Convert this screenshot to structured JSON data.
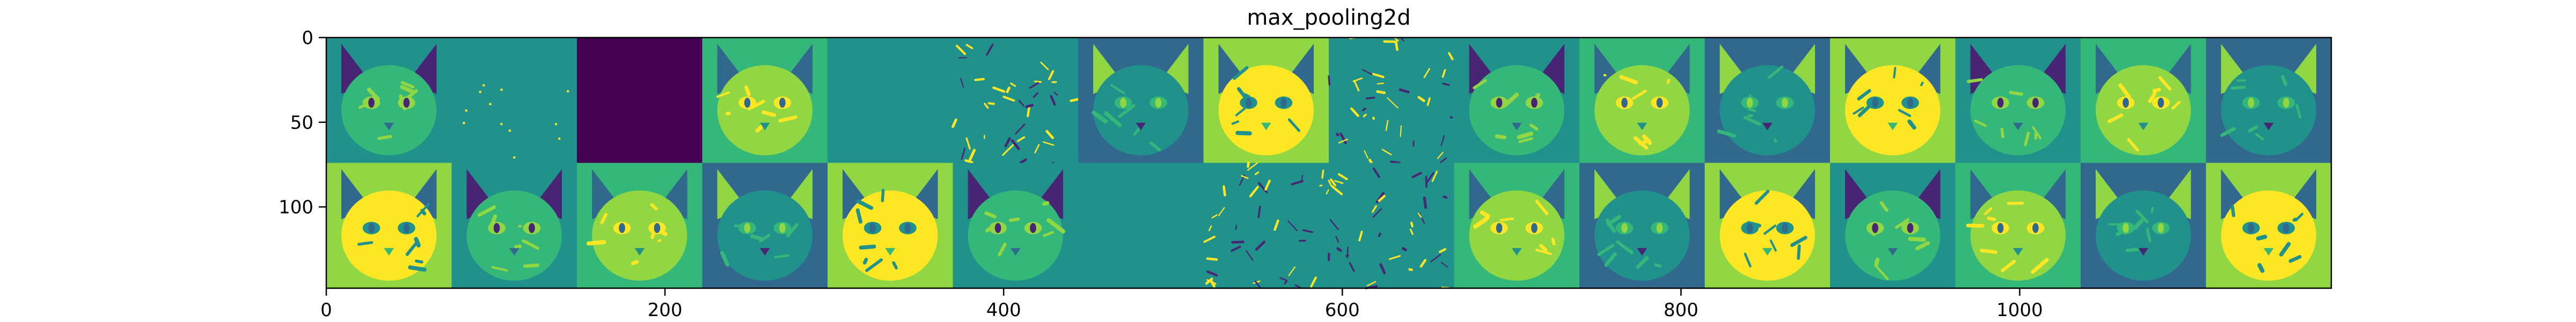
{
  "figure": {
    "title": "max_pooling2d"
  },
  "chart_data": {
    "type": "heatmap",
    "title": "max_pooling2d",
    "xlabel": "",
    "ylabel": "",
    "xlim": [
      0,
      1184
    ],
    "ylim": [
      148,
      0
    ],
    "x_ticks": [
      0,
      200,
      400,
      600,
      800,
      1000
    ],
    "y_ticks": [
      0,
      50,
      100
    ],
    "grid": false,
    "colormap": "viridis",
    "tile_grid": {
      "rows": 2,
      "cols": 16,
      "tile_size": 74
    },
    "tile_kinds": [
      [
        "cat",
        "sparse",
        "dark",
        "cat",
        "flat",
        "edge",
        "cat",
        "cat",
        "edge",
        "cat",
        "cat",
        "cat",
        "cat",
        "cat",
        "cat",
        "cat"
      ],
      [
        "cat",
        "cat",
        "cat",
        "cat",
        "cat",
        "cat",
        "flat",
        "edge",
        "edge",
        "cat",
        "cat",
        "cat",
        "cat",
        "cat",
        "cat",
        "cat"
      ]
    ],
    "colors": {
      "dark": "#440154",
      "purple": "#482475",
      "blue": "#31688e",
      "teal": "#21918c",
      "green": "#35b779",
      "lime": "#90d743",
      "yellow": "#fde725"
    }
  }
}
